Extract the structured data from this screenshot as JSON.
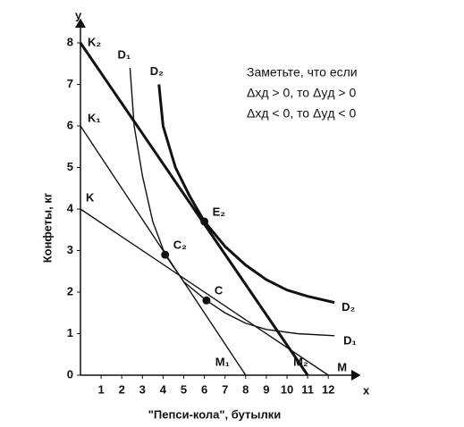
{
  "chart_data": {
    "type": "line",
    "x_label": "\"Пепси-кола\", бутылки",
    "y_label": "Конфеты, кг",
    "x_axis_name": "x",
    "y_axis_name": "y",
    "xlim": [
      0,
      12.8
    ],
    "ylim": [
      0,
      8.6
    ],
    "xticks": [
      1,
      2,
      3,
      4,
      5,
      6,
      7,
      8,
      9,
      10,
      11,
      12
    ],
    "yticks": [
      0,
      1,
      2,
      3,
      4,
      5,
      6,
      7,
      8
    ],
    "color": "#111111",
    "series": [
      {
        "name": "K₂",
        "end_label": "M₂",
        "line_width": 3,
        "x": [
          0,
          11
        ],
        "values": [
          8,
          0
        ]
      },
      {
        "name": "K₁",
        "end_label": "M₁",
        "line_width": 1.4,
        "x": [
          0,
          8
        ],
        "values": [
          6,
          0
        ]
      },
      {
        "name": "K",
        "end_label": "M",
        "line_width": 1.4,
        "x": [
          0,
          12
        ],
        "values": [
          4,
          0
        ]
      },
      {
        "name": "D₂",
        "end_label": "D₂",
        "line_width": 3,
        "x": [
          3.8,
          4.0,
          4.6,
          5.3,
          6,
          7,
          8,
          9,
          10,
          11,
          12.3
        ],
        "values": [
          7.0,
          6.0,
          5.0,
          4.3,
          3.7,
          3.1,
          2.65,
          2.3,
          2.05,
          1.9,
          1.75
        ]
      },
      {
        "name": "D₁",
        "end_label": "D₁",
        "line_width": 1.4,
        "x": [
          2.4,
          2.6,
          3.0,
          3.5,
          4.1,
          5,
          6.1,
          7,
          8,
          9,
          10.5,
          12.3
        ],
        "values": [
          7.4,
          6.0,
          4.8,
          3.7,
          2.9,
          2.25,
          1.8,
          1.5,
          1.25,
          1.1,
          1.0,
          0.95
        ]
      }
    ],
    "points": [
      {
        "label": "E₂",
        "x": 6,
        "y": 3.7
      },
      {
        "label": "C₂",
        "x": 4.1,
        "y": 2.9
      },
      {
        "label": "C",
        "x": 6.1,
        "y": 1.8
      }
    ],
    "annotation": [
      "Заметьте, что если",
      "Δxд > 0, то Δyд > 0",
      "Δxд < 0, то Δyд < 0"
    ]
  }
}
